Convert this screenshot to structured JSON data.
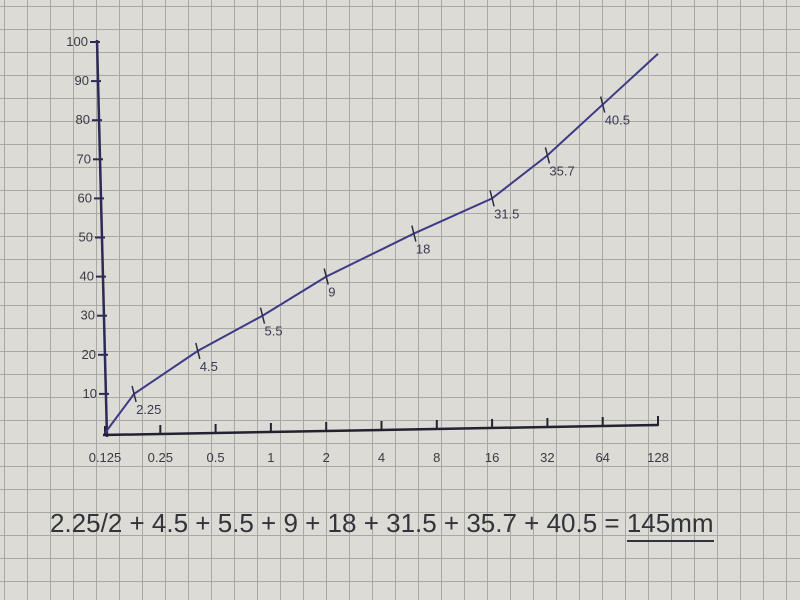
{
  "chart_data": {
    "type": "line",
    "title": "",
    "xlabel": "",
    "ylabel": "",
    "x_scale": "log2",
    "xlim": [
      0.125,
      128
    ],
    "ylim": [
      0,
      100
    ],
    "grid": true,
    "x_ticks": [
      "0.125",
      "0.25",
      "0.5",
      "1",
      "2",
      "4",
      "8",
      "16",
      "32",
      "64",
      "128"
    ],
    "x_tick_values": [
      0.125,
      0.25,
      0.5,
      1,
      2,
      4,
      8,
      16,
      32,
      64,
      128
    ],
    "y_ticks": [
      "10",
      "20",
      "30",
      "40",
      "50",
      "60",
      "70",
      "80",
      "90",
      "100"
    ],
    "y_tick_values": [
      10,
      20,
      30,
      40,
      50,
      60,
      70,
      80,
      90,
      100
    ],
    "series": [
      {
        "color": "#3d3a86",
        "points": [
          {
            "x": 0.125,
            "y": 0,
            "label": ""
          },
          {
            "x": 0.18,
            "y": 10,
            "label": "2.25"
          },
          {
            "x": 0.4,
            "y": 21,
            "label": "4.5"
          },
          {
            "x": 0.9,
            "y": 30,
            "label": "5.5"
          },
          {
            "x": 2,
            "y": 40,
            "label": "9"
          },
          {
            "x": 6,
            "y": 51,
            "label": "18"
          },
          {
            "x": 16,
            "y": 60,
            "label": "31.5"
          },
          {
            "x": 32,
            "y": 71,
            "label": "35.7"
          },
          {
            "x": 64,
            "y": 84,
            "label": "40.5"
          },
          {
            "x": 128,
            "y": 97,
            "label": ""
          }
        ]
      }
    ]
  },
  "equation": {
    "expression": "2.25/2 + 4.5 + 5.5 + 9 + 18 + 31.5 + 35.7 + 40.5 =",
    "result": "145mm"
  },
  "colors": {
    "ink": "#3d3a86",
    "paper": "#dcdbd6",
    "grid": "#a8a8a4"
  }
}
